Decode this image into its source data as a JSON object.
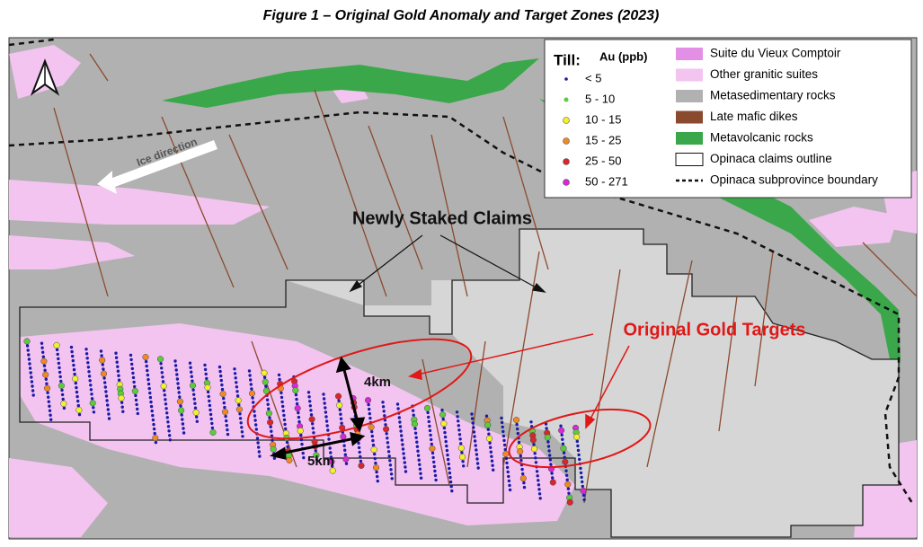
{
  "title": "Figure 1 – Original Gold Anomaly and Target Zones (2023)",
  "legend": {
    "till_label": "Till:",
    "till_unit": "Au (ppb)",
    "till_classes": [
      {
        "label": "< 5",
        "color": "#1a1aa8"
      },
      {
        "label": "5 - 10",
        "color": "#5ccc3c"
      },
      {
        "label": "10 - 15",
        "color": "#f4f02c"
      },
      {
        "label": "15 - 25",
        "color": "#ee8a26"
      },
      {
        "label": "25 - 50",
        "color": "#d8262a"
      },
      {
        "label": "50 - 271",
        "color": "#d62ad4"
      }
    ],
    "units": [
      {
        "label": "Suite du Vieux Comptoir",
        "color": "#e38fe6"
      },
      {
        "label": "Other granitic suites",
        "color": "#f2c4ef"
      },
      {
        "label": "Metasedimentary rocks",
        "color": "#b1b1b1"
      },
      {
        "label": "Late mafic dikes",
        "color": "#8a4a2e"
      },
      {
        "label": "Metavolcanic rocks",
        "color": "#3aa84a"
      },
      {
        "label": "Opinaca claims outline",
        "color": "#ffffff"
      },
      {
        "label": "Opinaca subprovince boundary",
        "color": "#111111"
      }
    ]
  },
  "labels": {
    "ice_direction": "Ice direction",
    "new_claims": "Newly Staked Claims",
    "gold_targets": "Original Gold Targets",
    "scale_4km": "4km",
    "scale_5km": "5km"
  }
}
